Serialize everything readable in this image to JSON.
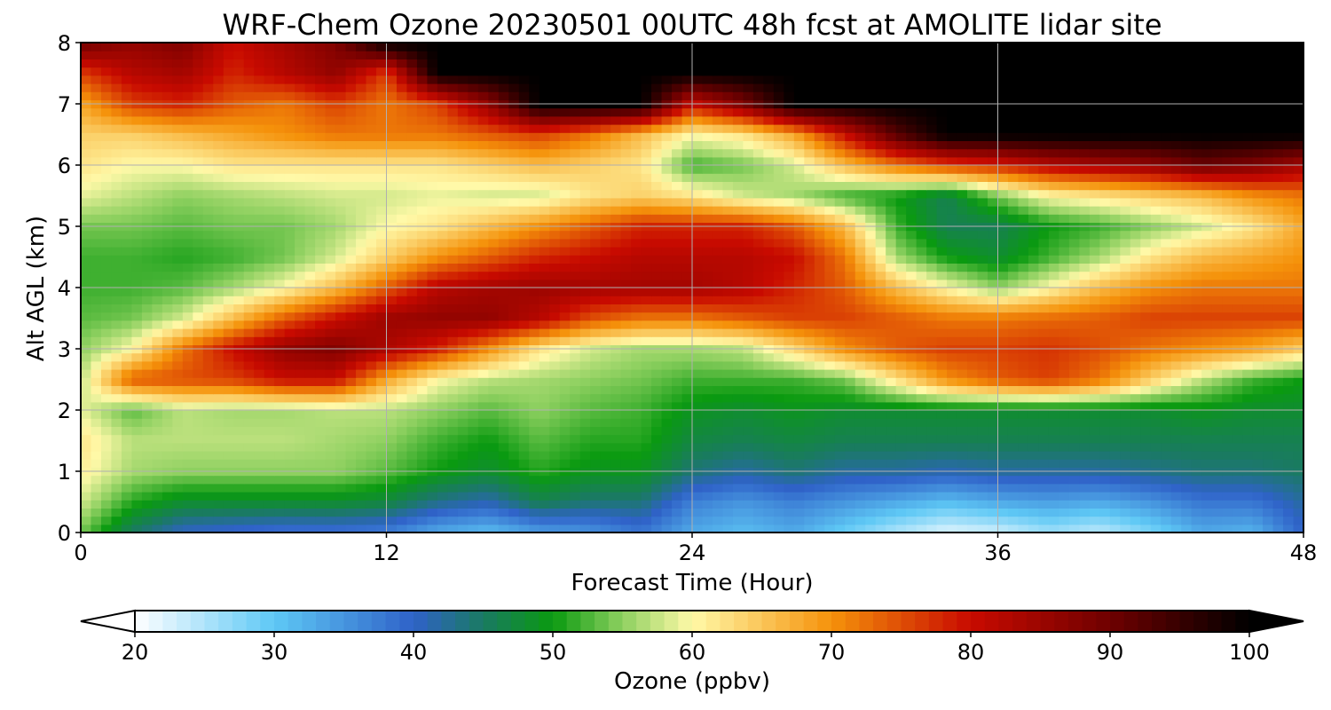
{
  "chart_data": {
    "type": "heatmap",
    "title": "WRF-Chem Ozone  20230501 00UTC 48h fcst at AMOLITE lidar site",
    "xlabel": "Forecast Time (Hour)",
    "ylabel": "Alt AGL (km)",
    "xlim": [
      0,
      48
    ],
    "ylim": [
      0,
      8
    ],
    "x_ticks": [
      "0",
      "12",
      "24",
      "36",
      "48"
    ],
    "y_ticks": [
      "0",
      "1",
      "2",
      "3",
      "4",
      "5",
      "6",
      "7",
      "8"
    ],
    "grid": true,
    "colorbar": {
      "label": "Ozone  (ppbv)",
      "range": [
        20,
        100
      ],
      "ticks": [
        "20",
        "30",
        "40",
        "50",
        "60",
        "70",
        "80",
        "90",
        "100"
      ],
      "extend": "both",
      "stops": [
        {
          "v": 20,
          "c": "#ffffff"
        },
        {
          "v": 30,
          "c": "#5ec8f5"
        },
        {
          "v": 40,
          "c": "#2f62c8"
        },
        {
          "v": 45,
          "c": "#1a7a62"
        },
        {
          "v": 50,
          "c": "#0a9a10"
        },
        {
          "v": 55,
          "c": "#8ed060"
        },
        {
          "v": 60,
          "c": "#fff9a8"
        },
        {
          "v": 70,
          "c": "#f5920a"
        },
        {
          "v": 80,
          "c": "#c80a00"
        },
        {
          "v": 90,
          "c": "#6e0000"
        },
        {
          "v": 100,
          "c": "#000000"
        }
      ]
    },
    "x": [
      0,
      2,
      4,
      6,
      8,
      10,
      12,
      14,
      16,
      18,
      20,
      22,
      24,
      26,
      28,
      30,
      32,
      34,
      36,
      38,
      40,
      42,
      44,
      46,
      48
    ],
    "y": [
      0,
      0.5,
      1,
      1.5,
      2,
      2.5,
      3,
      3.5,
      4,
      4.5,
      5,
      5.5,
      6,
      6.5,
      7,
      7.5,
      8
    ],
    "z_ppbv": [
      [
        54,
        45,
        40,
        39,
        38,
        38,
        37,
        33,
        31,
        34,
        35,
        38,
        33,
        31,
        33,
        29,
        25,
        22,
        23,
        26,
        24,
        28,
        33,
        32,
        40
      ],
      [
        58,
        51,
        48,
        48,
        48,
        48,
        47,
        43,
        41,
        46,
        44,
        44,
        37,
        35,
        37,
        35,
        33,
        31,
        33,
        34,
        33,
        35,
        38,
        38,
        42
      ],
      [
        61,
        56,
        55,
        55,
        55,
        55,
        53,
        50,
        48,
        51,
        49,
        49,
        44,
        42,
        44,
        42,
        42,
        41,
        42,
        42,
        42,
        43,
        44,
        44,
        45
      ],
      [
        62,
        57,
        57,
        57,
        57,
        56,
        55,
        52,
        50,
        53,
        51,
        51,
        47,
        46,
        47,
        46,
        46,
        46,
        46,
        46,
        46,
        46,
        46,
        46,
        46
      ],
      [
        59,
        53,
        57,
        56,
        56,
        57,
        57,
        55,
        53,
        55,
        53,
        52,
        49,
        48,
        49,
        48,
        48,
        48,
        48,
        48,
        48,
        48,
        49,
        48,
        48
      ],
      [
        57,
        74,
        75,
        76,
        80,
        80,
        68,
        60,
        57,
        56,
        55,
        54,
        52,
        52,
        52,
        54,
        62,
        70,
        74,
        76,
        72,
        64,
        57,
        52,
        50
      ],
      [
        55,
        60,
        72,
        80,
        86,
        88,
        83,
        78,
        70,
        62,
        58,
        56,
        56,
        57,
        63,
        70,
        74,
        76,
        76,
        77,
        75,
        72,
        70,
        68,
        64
      ],
      [
        53,
        54,
        58,
        66,
        74,
        80,
        85,
        86,
        86,
        82,
        75,
        72,
        72,
        74,
        76,
        76,
        74,
        72,
        72,
        73,
        74,
        76,
        76,
        76,
        76
      ],
      [
        52,
        52,
        53,
        56,
        60,
        66,
        74,
        82,
        84,
        85,
        84,
        84,
        84,
        82,
        78,
        74,
        66,
        60,
        55,
        60,
        66,
        70,
        72,
        72,
        72
      ],
      [
        52,
        52,
        51,
        52,
        54,
        58,
        64,
        70,
        74,
        78,
        80,
        82,
        82,
        82,
        80,
        72,
        56,
        50,
        48,
        52,
        56,
        62,
        66,
        68,
        70
      ],
      [
        54,
        54,
        53,
        54,
        54,
        56,
        60,
        62,
        66,
        70,
        74,
        78,
        78,
        78,
        74,
        66,
        52,
        46,
        46,
        50,
        52,
        55,
        58,
        62,
        68
      ],
      [
        59,
        57,
        55,
        56,
        57,
        58,
        58,
        59,
        58,
        58,
        62,
        64,
        62,
        58,
        56,
        52,
        50,
        46,
        54,
        60,
        62,
        64,
        66,
        70,
        72
      ],
      [
        62,
        60,
        60,
        62,
        62,
        62,
        62,
        62,
        64,
        66,
        64,
        62,
        52,
        54,
        58,
        66,
        72,
        76,
        78,
        82,
        84,
        86,
        90,
        88,
        84
      ],
      [
        64,
        64,
        66,
        68,
        70,
        72,
        72,
        72,
        74,
        76,
        72,
        66,
        60,
        62,
        68,
        80,
        92,
        100,
        100,
        100,
        100,
        100,
        100,
        100,
        100
      ],
      [
        68,
        76,
        78,
        74,
        72,
        76,
        72,
        76,
        86,
        100,
        100,
        100,
        80,
        88,
        100,
        100,
        100,
        100,
        100,
        100,
        100,
        100,
        100,
        100,
        100
      ],
      [
        76,
        82,
        84,
        78,
        82,
        86,
        76,
        100,
        100,
        100,
        100,
        100,
        100,
        100,
        100,
        100,
        100,
        100,
        100,
        100,
        100,
        100,
        100,
        100,
        100
      ],
      [
        90,
        86,
        88,
        80,
        84,
        88,
        100,
        100,
        100,
        100,
        100,
        100,
        100,
        100,
        100,
        100,
        100,
        100,
        100,
        100,
        100,
        100,
        100,
        100,
        100
      ]
    ]
  }
}
